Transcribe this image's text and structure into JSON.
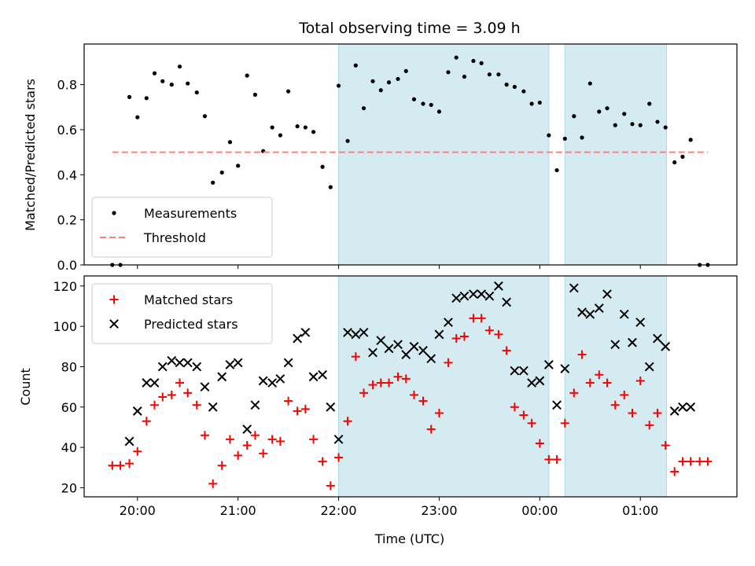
{
  "figure": {
    "title": "Total observing time = 3.09 h",
    "xlabel": "Time (UTC)",
    "xticks": [
      {
        "x": 20.0,
        "label": "20:00"
      },
      {
        "x": 21.0,
        "label": "21:00"
      },
      {
        "x": 22.0,
        "label": "22:00"
      },
      {
        "x": 23.0,
        "label": "23:00"
      },
      {
        "x": 24.0,
        "label": "00:00"
      },
      {
        "x": 25.0,
        "label": "01:00"
      }
    ],
    "xlim": [
      19.47,
      25.96
    ],
    "shaded_intervals": [
      [
        22.0,
        24.09
      ],
      [
        24.25,
        25.26
      ]
    ],
    "shade_color": "#add8e6"
  },
  "chart_data": [
    {
      "type": "scatter",
      "panel": "top",
      "xlabel": "Time (UTC)",
      "ylabel": "Matched/Predicted stars",
      "ylim": [
        0.0,
        0.98
      ],
      "yticks": [
        0.0,
        0.2,
        0.4,
        0.6,
        0.8
      ],
      "ytick_labels": [
        "0.0",
        "0.2",
        "0.4",
        "0.6",
        "0.8"
      ],
      "legend": "lower-left",
      "series": [
        {
          "name": "Measurements",
          "color": "#000000",
          "marker": "dot",
          "x": [
            19.75,
            19.83,
            19.92,
            20.0,
            20.09,
            20.17,
            20.25,
            20.34,
            20.42,
            20.5,
            20.59,
            20.67,
            20.75,
            20.84,
            20.92,
            21.0,
            21.09,
            21.17,
            21.25,
            21.34,
            21.42,
            21.5,
            21.59,
            21.67,
            21.75,
            21.84,
            21.92,
            22.0,
            22.09,
            22.17,
            22.25,
            22.34,
            22.42,
            22.5,
            22.59,
            22.67,
            22.75,
            22.84,
            22.92,
            23.0,
            23.09,
            23.17,
            23.25,
            23.34,
            23.42,
            23.5,
            23.59,
            23.67,
            23.75,
            23.84,
            23.92,
            24.0,
            24.09,
            24.17,
            24.25,
            24.34,
            24.42,
            24.5,
            24.59,
            24.67,
            24.75,
            24.84,
            24.92,
            25.0,
            25.09,
            25.17,
            25.25,
            25.34,
            25.42,
            25.5,
            25.59,
            25.67
          ],
          "y": [
            0.0,
            0.0,
            0.745,
            0.655,
            0.74,
            0.85,
            0.815,
            0.8,
            0.88,
            0.805,
            0.765,
            0.66,
            0.365,
            0.41,
            0.545,
            0.44,
            0.84,
            0.755,
            0.505,
            0.61,
            0.575,
            0.77,
            0.615,
            0.61,
            0.59,
            0.435,
            0.345,
            0.795,
            0.55,
            0.885,
            0.695,
            0.815,
            0.775,
            0.81,
            0.825,
            0.86,
            0.735,
            0.715,
            0.71,
            0.68,
            0.855,
            0.92,
            0.835,
            0.905,
            0.895,
            0.845,
            0.845,
            0.8,
            0.79,
            0.77,
            0.715,
            0.72,
            0.575,
            0.42,
            0.56,
            0.66,
            0.565,
            0.805,
            0.68,
            0.695,
            0.62,
            0.67,
            0.625,
            0.62,
            0.715,
            0.635,
            0.61,
            0.455,
            0.48,
            0.555,
            0.0,
            0.0
          ]
        },
        {
          "name": "Threshold",
          "color": "#ff7f7f",
          "style": "dashed",
          "x": [
            19.75,
            25.67
          ],
          "y": [
            0.5,
            0.5
          ]
        }
      ]
    },
    {
      "type": "scatter",
      "panel": "bottom",
      "xlabel": "Time (UTC)",
      "ylabel": "Count",
      "ylim": [
        15.5,
        125.0
      ],
      "yticks": [
        20,
        40,
        60,
        80,
        100,
        120
      ],
      "ytick_labels": [
        "20",
        "40",
        "60",
        "80",
        "100",
        "120"
      ],
      "legend": "upper-left",
      "series": [
        {
          "name": "Matched stars",
          "color": "#ff0000",
          "marker": "plus",
          "x": [
            19.75,
            19.83,
            19.92,
            20.0,
            20.09,
            20.17,
            20.25,
            20.34,
            20.42,
            20.5,
            20.59,
            20.67,
            20.75,
            20.84,
            20.92,
            21.0,
            21.09,
            21.17,
            21.25,
            21.34,
            21.42,
            21.5,
            21.59,
            21.67,
            21.75,
            21.84,
            21.92,
            22.0,
            22.09,
            22.17,
            22.25,
            22.34,
            22.42,
            22.5,
            22.59,
            22.67,
            22.75,
            22.84,
            22.92,
            23.0,
            23.09,
            23.17,
            23.25,
            23.34,
            23.42,
            23.5,
            23.59,
            23.67,
            23.75,
            23.84,
            23.92,
            24.0,
            24.09,
            24.17,
            24.25,
            24.34,
            24.42,
            24.5,
            24.59,
            24.67,
            24.75,
            24.84,
            24.92,
            25.0,
            25.09,
            25.17,
            25.25,
            25.34,
            25.42,
            25.5,
            25.59,
            25.67
          ],
          "y": [
            31,
            31,
            32,
            38,
            53,
            61,
            65,
            66,
            72,
            67,
            61,
            46,
            22,
            31,
            44,
            36,
            41,
            46,
            37,
            44,
            43,
            63,
            58,
            59,
            44,
            33,
            21,
            35,
            53,
            85,
            67,
            71,
            72,
            72,
            75,
            74,
            66,
            63,
            49,
            57,
            82,
            94,
            95,
            104,
            104,
            98,
            96,
            88,
            60,
            56,
            52,
            42,
            34,
            34,
            52,
            67,
            86,
            72,
            76,
            72,
            61,
            66,
            57,
            73,
            51,
            57,
            41,
            28,
            33,
            33,
            33,
            33
          ]
        },
        {
          "name": "Predicted stars",
          "color": "#000000",
          "marker": "x",
          "x": [
            19.92,
            20.0,
            20.09,
            20.17,
            20.25,
            20.34,
            20.42,
            20.5,
            20.59,
            20.67,
            20.75,
            20.84,
            20.92,
            21.0,
            21.09,
            21.17,
            21.25,
            21.34,
            21.42,
            21.5,
            21.59,
            21.67,
            21.75,
            21.84,
            21.92,
            22.0,
            22.09,
            22.17,
            22.25,
            22.34,
            22.42,
            22.5,
            22.59,
            22.67,
            22.75,
            22.84,
            22.92,
            23.0,
            23.09,
            23.17,
            23.25,
            23.34,
            23.42,
            23.5,
            23.59,
            23.67,
            23.75,
            23.84,
            23.92,
            24.0,
            24.09,
            24.17,
            24.25,
            24.34,
            24.42,
            24.5,
            24.59,
            24.67,
            24.75,
            24.84,
            24.92,
            25.0,
            25.09,
            25.17,
            25.25,
            25.34,
            25.42,
            25.5
          ],
          "y": [
            43,
            58,
            72,
            72,
            80,
            83,
            82,
            82,
            80,
            70,
            60,
            75,
            81,
            82,
            49,
            61,
            73,
            72,
            74,
            82,
            94,
            97,
            75,
            76,
            60,
            44,
            97,
            96,
            97,
            87,
            93,
            89,
            91,
            86,
            90,
            88,
            84,
            96,
            102,
            114,
            115,
            116,
            116,
            115,
            120,
            112,
            78,
            78,
            72,
            73,
            81,
            61,
            79,
            119,
            107,
            106,
            109,
            116,
            91,
            106,
            92,
            102,
            80,
            94,
            90,
            58,
            60,
            60
          ]
        }
      ]
    }
  ]
}
